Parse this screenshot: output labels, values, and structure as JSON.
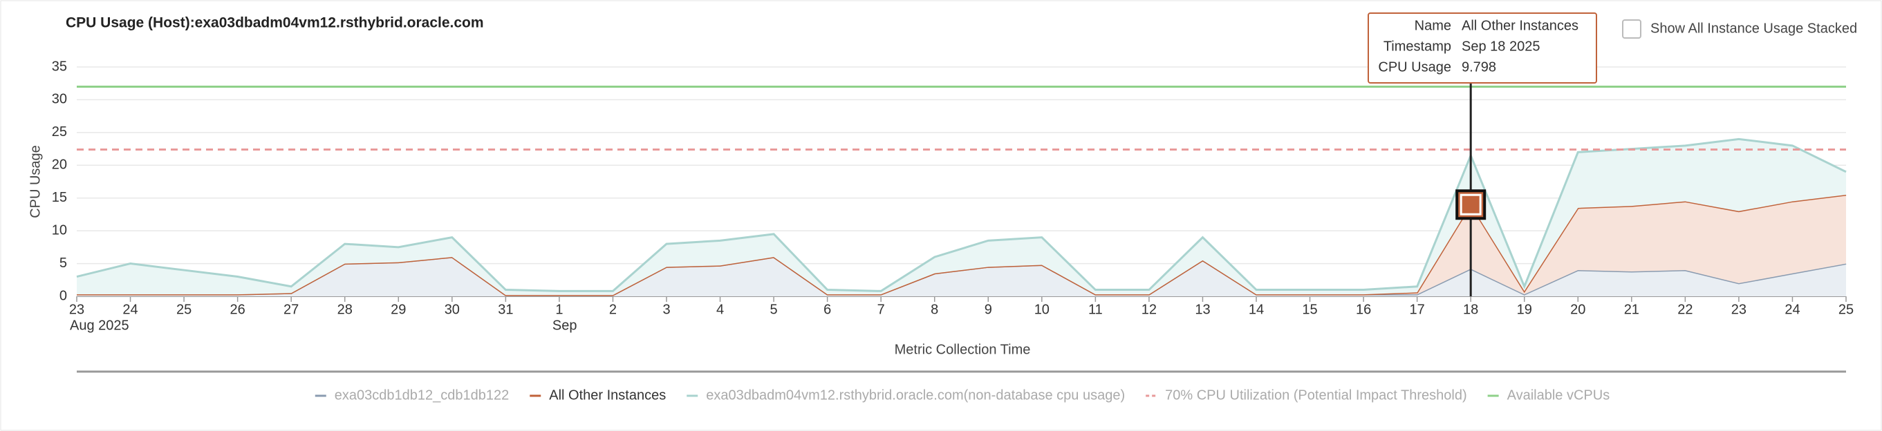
{
  "chart_data": {
    "type": "stacked-area",
    "title": "CPU Usage (Host):exa03dbadm04vm12.rsthybrid.oracle.com",
    "y_label": "CPU Usage",
    "x_label": "Metric Collection Time",
    "x": [
      "2025-08-23",
      "2025-08-24",
      "2025-08-25",
      "2025-08-26",
      "2025-08-27",
      "2025-08-28",
      "2025-08-29",
      "2025-08-30",
      "2025-08-31",
      "2025-09-01",
      "2025-09-02",
      "2025-09-03",
      "2025-09-04",
      "2025-09-05",
      "2025-09-06",
      "2025-09-07",
      "2025-09-08",
      "2025-09-09",
      "2025-09-10",
      "2025-09-11",
      "2025-09-12",
      "2025-09-13",
      "2025-09-14",
      "2025-09-15",
      "2025-09-16",
      "2025-09-17",
      "2025-09-18",
      "2025-09-19",
      "2025-09-20",
      "2025-09-21",
      "2025-09-22",
      "2025-09-23",
      "2025-09-24",
      "2025-09-25"
    ],
    "xlim": [
      "2025-08-23",
      "2025-09-25"
    ],
    "xticks": [
      {
        "value": "2025-08-23",
        "label": "23"
      },
      {
        "value": "2025-08-24",
        "label": "24"
      },
      {
        "value": "2025-08-25",
        "label": "25"
      },
      {
        "value": "2025-08-26",
        "label": "26"
      },
      {
        "value": "2025-08-27",
        "label": "27"
      },
      {
        "value": "2025-08-28",
        "label": "28"
      },
      {
        "value": "2025-08-29",
        "label": "29"
      },
      {
        "value": "2025-08-30",
        "label": "30"
      },
      {
        "value": "2025-08-31",
        "label": "31"
      },
      {
        "value": "2025-09-01",
        "label": "1"
      },
      {
        "value": "2025-09-02",
        "label": "2"
      },
      {
        "value": "2025-09-03",
        "label": "3"
      },
      {
        "value": "2025-09-04",
        "label": "4"
      },
      {
        "value": "2025-09-05",
        "label": "5"
      },
      {
        "value": "2025-09-06",
        "label": "6"
      },
      {
        "value": "2025-09-07",
        "label": "7"
      },
      {
        "value": "2025-09-08",
        "label": "8"
      },
      {
        "value": "2025-09-09",
        "label": "9"
      },
      {
        "value": "2025-09-10",
        "label": "10"
      },
      {
        "value": "2025-09-11",
        "label": "11"
      },
      {
        "value": "2025-09-12",
        "label": "12"
      },
      {
        "value": "2025-09-13",
        "label": "13"
      },
      {
        "value": "2025-09-14",
        "label": "14"
      },
      {
        "value": "2025-09-15",
        "label": "15"
      },
      {
        "value": "2025-09-16",
        "label": "16"
      },
      {
        "value": "2025-09-17",
        "label": "17"
      },
      {
        "value": "2025-09-18",
        "label": "18"
      },
      {
        "value": "2025-09-19",
        "label": "19"
      },
      {
        "value": "2025-09-20",
        "label": "20"
      },
      {
        "value": "2025-09-21",
        "label": "21"
      },
      {
        "value": "2025-09-22",
        "label": "22"
      },
      {
        "value": "2025-09-23",
        "label": "23"
      },
      {
        "value": "2025-09-24",
        "label": "24"
      },
      {
        "value": "2025-09-25",
        "label": "25"
      }
    ],
    "x_period_labels": [
      {
        "value": "2025-08-23",
        "label": "Aug 2025"
      },
      {
        "value": "2025-09-01",
        "label": "Sep"
      }
    ],
    "ylim": [
      0,
      35
    ],
    "yticks": [
      0,
      5,
      10,
      15,
      20,
      25,
      30,
      35
    ],
    "grid": true,
    "series": [
      {
        "name": "exa03cdb1db12_cdb1db122",
        "color": "#8a9bb0",
        "fill": "#e9eef3",
        "values": [
          0.3,
          0.3,
          0.3,
          0.3,
          0.5,
          5,
          5.2,
          6,
          0.2,
          0.2,
          0.2,
          4.5,
          4.7,
          6,
          0.3,
          0.3,
          3.5,
          4.5,
          4.8,
          0.3,
          0.3,
          5.5,
          0.3,
          0.3,
          0.3,
          0.3,
          4.2,
          0.3,
          4,
          3.8,
          4,
          2,
          3.5,
          5
        ]
      },
      {
        "name": "All Other Instances",
        "color": "#c0623a",
        "fill": "#f7e3da",
        "highlighted": true,
        "values": [
          0,
          0,
          0,
          0,
          0,
          0,
          0,
          0,
          0,
          0,
          0,
          0,
          0,
          0,
          0,
          0,
          0,
          0,
          0,
          0,
          0,
          0,
          0,
          0,
          0,
          0.3,
          9.798,
          0.5,
          9.5,
          10,
          10.5,
          11,
          11,
          10.5
        ]
      },
      {
        "name": "exa03dbadm04vm12.rsthybrid.oracle.com(non-database cpu usage)",
        "color": "#a9d3cf",
        "fill": "#eaf6f5",
        "values": [
          2.7,
          4.7,
          3.7,
          2.7,
          1,
          3,
          2.3,
          3,
          0.8,
          0.6,
          0.6,
          3.5,
          3.8,
          3.5,
          0.7,
          0.5,
          2.5,
          4,
          4.2,
          0.7,
          0.7,
          3.5,
          0.7,
          0.7,
          0.7,
          0.9,
          7.5,
          0.7,
          8.5,
          8.7,
          8.5,
          11,
          8.5,
          3.5
        ]
      }
    ],
    "reference_lines": [
      {
        "name": "70% CPU Utilization (Potential Impact Threshold)",
        "value": 22.4,
        "color": "#e89a9a",
        "dashed": true
      },
      {
        "name": "Available vCPUs",
        "value": 32,
        "color": "#8fd18a",
        "dashed": false
      }
    ],
    "tooltip": {
      "rows": [
        {
          "label": "Name",
          "value": "All Other Instances"
        },
        {
          "label": "Timestamp",
          "value": "Sep 18 2025"
        },
        {
          "label": "CPU Usage",
          "value": 9.798
        }
      ]
    },
    "checkbox_label": "Show All Instance Usage Stacked"
  }
}
